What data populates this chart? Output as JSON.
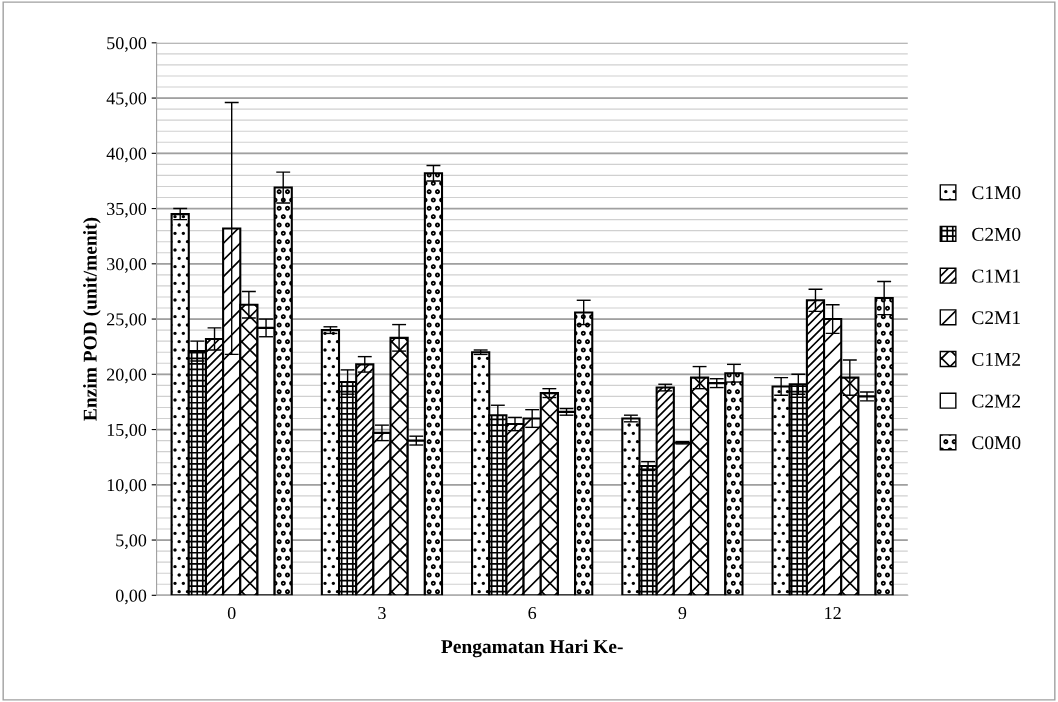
{
  "chart_data": {
    "type": "bar",
    "xlabel": "Pengamatan Hari Ke-",
    "ylabel": "Enzim POD (unit/menit)",
    "categories": [
      "0",
      "3",
      "6",
      "9",
      "12"
    ],
    "series": [
      {
        "name": "C1M0",
        "color": "#000000",
        "values": [
          34.5,
          24.0,
          22.0,
          16.0,
          18.9
        ],
        "errors": [
          0.5,
          0.3,
          0.2,
          0.3,
          0.8
        ]
      },
      {
        "name": "C2M0",
        "color": "#000000",
        "values": [
          22.1,
          19.3,
          16.3,
          11.7,
          19.1
        ],
        "errors": [
          0.9,
          1.1,
          0.9,
          0.4,
          0.9
        ]
      },
      {
        "name": "C1M1",
        "color": "#000000",
        "values": [
          23.2,
          20.9,
          15.5,
          18.8,
          26.7
        ],
        "errors": [
          1.0,
          0.7,
          0.6,
          0.3,
          1.0
        ]
      },
      {
        "name": "C2M1",
        "color": "#000000",
        "values": [
          33.2,
          14.7,
          16.0,
          13.8,
          25.0
        ],
        "errors": [
          11.4,
          0.7,
          0.8,
          0.1,
          1.3
        ]
      },
      {
        "name": "C1M2",
        "color": "#000000",
        "values": [
          26.3,
          23.3,
          18.3,
          19.7,
          19.7
        ],
        "errors": [
          1.2,
          1.2,
          0.4,
          1.0,
          1.6
        ]
      },
      {
        "name": "C2M2",
        "color": "#ffffff",
        "values": [
          24.2,
          14.0,
          16.6,
          19.2,
          18.0
        ],
        "errors": [
          0.8,
          0.4,
          0.3,
          0.4,
          0.4
        ]
      },
      {
        "name": "C0M0",
        "color": "#000000",
        "values": [
          36.9,
          38.2,
          25.6,
          20.1,
          26.9
        ],
        "errors": [
          1.4,
          0.7,
          1.1,
          0.8,
          1.5
        ]
      }
    ],
    "ylim": [
      0,
      50
    ],
    "yticks": [
      {
        "value": 0,
        "label": "0,00"
      },
      {
        "value": 5,
        "label": "5,00"
      },
      {
        "value": 10,
        "label": "10,00"
      },
      {
        "value": 15,
        "label": "15,00"
      },
      {
        "value": 20,
        "label": "20,00"
      },
      {
        "value": 25,
        "label": "25,00"
      },
      {
        "value": 30,
        "label": "30,00"
      },
      {
        "value": 35,
        "label": "35,00"
      },
      {
        "value": 40,
        "label": "40,00"
      },
      {
        "value": 45,
        "label": "45,00"
      },
      {
        "value": 50,
        "label": "50,00"
      }
    ],
    "grid": "y",
    "legend": "right"
  }
}
